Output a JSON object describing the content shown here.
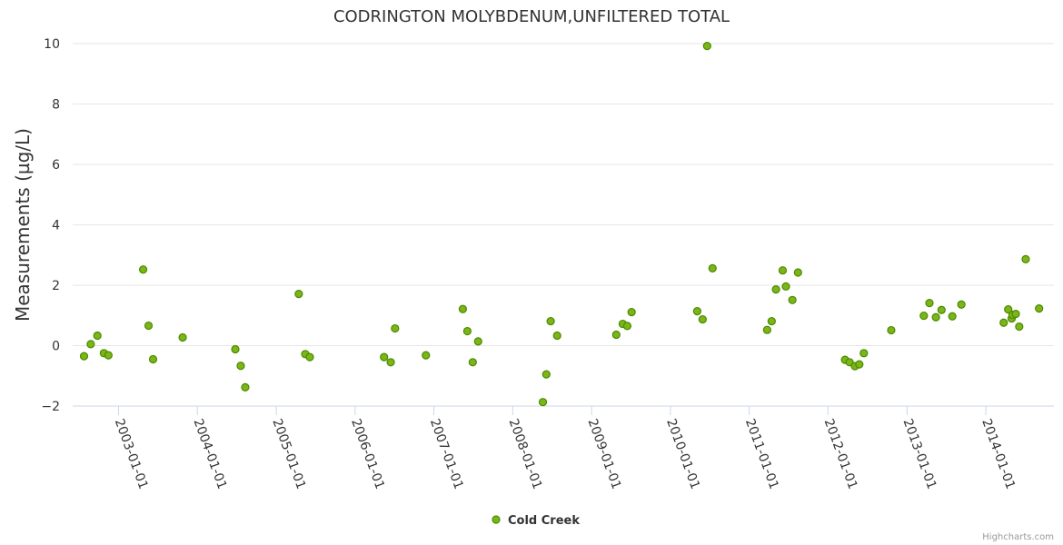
{
  "chart_data": {
    "type": "scatter",
    "title": "CODRINGTON MOLYBDENUM,UNFILTERED TOTAL",
    "ylabel": "Measurements (µg/L)",
    "xlabel": "",
    "ylim": [
      -2,
      10
    ],
    "yticks": [
      "−2",
      "0",
      "2",
      "4",
      "6",
      "8",
      "10"
    ],
    "xtick_labels": [
      "2003-01-01",
      "2004-01-01",
      "2005-01-01",
      "2006-01-01",
      "2007-01-01",
      "2008-01-01",
      "2009-01-01",
      "2010-01-01",
      "2011-01-01",
      "2012-01-01",
      "2013-01-01",
      "2014-01-01"
    ],
    "grid": true,
    "legend_position": "bottom-center",
    "colors": {
      "marker_fill": "#7cb518",
      "marker_stroke": "#4a8a00",
      "grid": "#e6e6e6"
    },
    "series": [
      {
        "name": "Cold Creek",
        "points": [
          {
            "x": "2002-07-25",
            "y": -0.35
          },
          {
            "x": "2002-08-25",
            "y": 0.05
          },
          {
            "x": "2002-09-25",
            "y": 0.33
          },
          {
            "x": "2002-10-25",
            "y": -0.25
          },
          {
            "x": "2002-11-15",
            "y": -0.32
          },
          {
            "x": "2003-04-25",
            "y": 2.52
          },
          {
            "x": "2003-05-20",
            "y": 0.66
          },
          {
            "x": "2003-06-10",
            "y": -0.45
          },
          {
            "x": "2003-10-25",
            "y": 0.27
          },
          {
            "x": "2004-06-25",
            "y": -0.12
          },
          {
            "x": "2004-07-20",
            "y": -0.67
          },
          {
            "x": "2004-08-10",
            "y": -1.38
          },
          {
            "x": "2005-04-15",
            "y": 1.71
          },
          {
            "x": "2005-05-15",
            "y": -0.28
          },
          {
            "x": "2005-06-05",
            "y": -0.38
          },
          {
            "x": "2006-05-15",
            "y": -0.38
          },
          {
            "x": "2006-06-15",
            "y": -0.55
          },
          {
            "x": "2006-07-05",
            "y": 0.57
          },
          {
            "x": "2006-11-25",
            "y": -0.32
          },
          {
            "x": "2007-05-15",
            "y": 1.21
          },
          {
            "x": "2007-06-05",
            "y": 0.48
          },
          {
            "x": "2007-06-30",
            "y": -0.55
          },
          {
            "x": "2007-07-25",
            "y": 0.14
          },
          {
            "x": "2008-05-20",
            "y": -1.87
          },
          {
            "x": "2008-06-05",
            "y": -0.95
          },
          {
            "x": "2008-06-25",
            "y": 0.81
          },
          {
            "x": "2008-07-25",
            "y": 0.33
          },
          {
            "x": "2009-04-25",
            "y": 0.36
          },
          {
            "x": "2009-05-25",
            "y": 0.72
          },
          {
            "x": "2009-06-15",
            "y": 0.65
          },
          {
            "x": "2009-07-05",
            "y": 1.11
          },
          {
            "x": "2010-05-05",
            "y": 1.14
          },
          {
            "x": "2010-05-30",
            "y": 0.87
          },
          {
            "x": "2010-06-20",
            "y": 9.92
          },
          {
            "x": "2010-07-15",
            "y": 2.56
          },
          {
            "x": "2011-03-25",
            "y": 0.52
          },
          {
            "x": "2011-04-15",
            "y": 0.81
          },
          {
            "x": "2011-05-05",
            "y": 1.86
          },
          {
            "x": "2011-06-05",
            "y": 2.49
          },
          {
            "x": "2011-06-20",
            "y": 1.96
          },
          {
            "x": "2011-07-20",
            "y": 1.51
          },
          {
            "x": "2011-08-15",
            "y": 2.42
          },
          {
            "x": "2012-03-20",
            "y": -0.47
          },
          {
            "x": "2012-04-10",
            "y": -0.55
          },
          {
            "x": "2012-05-05",
            "y": -0.68
          },
          {
            "x": "2012-05-25",
            "y": -0.62
          },
          {
            "x": "2012-06-15",
            "y": -0.25
          },
          {
            "x": "2012-10-20",
            "y": 0.51
          },
          {
            "x": "2013-03-20",
            "y": 0.99
          },
          {
            "x": "2013-04-15",
            "y": 1.41
          },
          {
            "x": "2013-05-15",
            "y": 0.94
          },
          {
            "x": "2013-06-10",
            "y": 1.18
          },
          {
            "x": "2013-07-30",
            "y": 0.97
          },
          {
            "x": "2013-09-10",
            "y": 1.36
          },
          {
            "x": "2014-03-25",
            "y": 0.76
          },
          {
            "x": "2014-04-15",
            "y": 1.2
          },
          {
            "x": "2014-05-01",
            "y": 0.9
          },
          {
            "x": "2014-05-05",
            "y": 1.02
          },
          {
            "x": "2014-05-20",
            "y": 1.05
          },
          {
            "x": "2014-06-05",
            "y": 0.63
          },
          {
            "x": "2014-07-05",
            "y": 2.86
          },
          {
            "x": "2014-09-05",
            "y": 1.23
          }
        ]
      }
    ]
  },
  "credits": "Highcharts.com"
}
